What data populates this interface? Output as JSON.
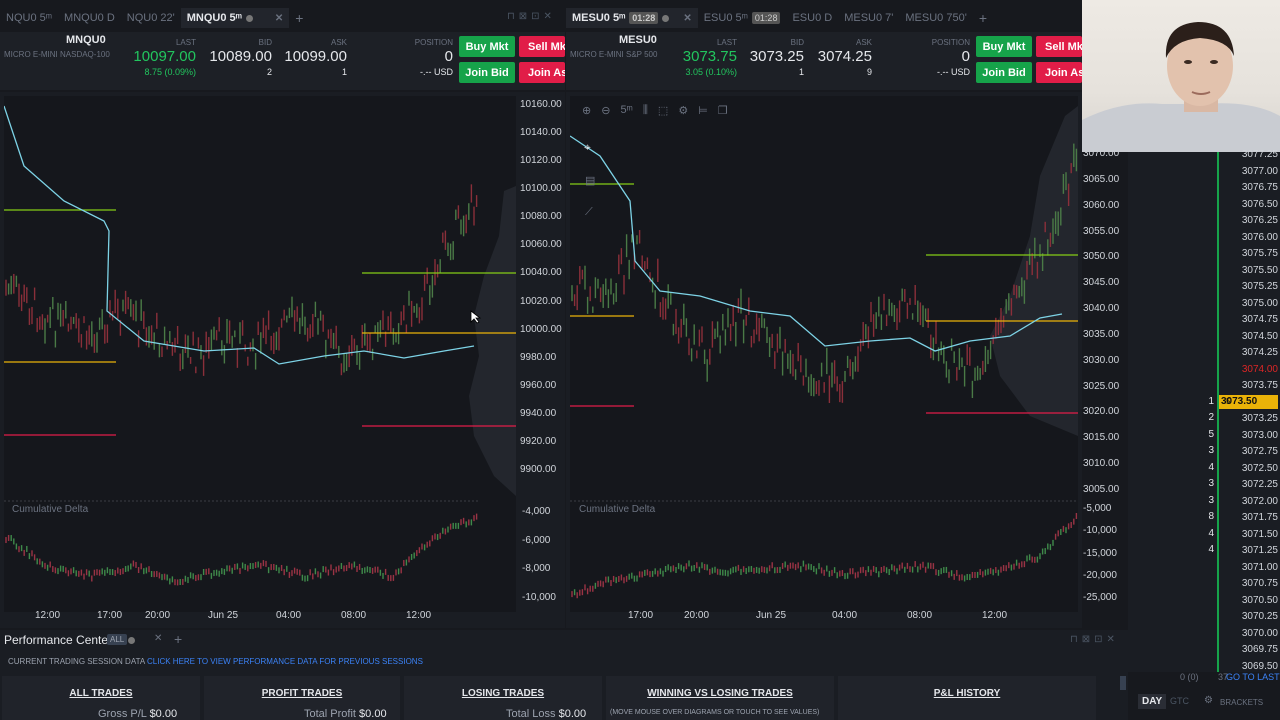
{
  "left_tabs": [
    {
      "label": "NQU0 5ᵐ",
      "active": false
    },
    {
      "label": "MNQU0 D",
      "active": false
    },
    {
      "label": "NQU0 22'",
      "active": false
    },
    {
      "label": "MNQU0 5ᵐ",
      "active": true
    }
  ],
  "right_tabs": [
    {
      "label": "MESU0 5ᵐ",
      "active": true,
      "badge": "01:28"
    },
    {
      "label": "ESU0 5ᵐ",
      "active": false,
      "badge": "01:28"
    },
    {
      "label": "ESU0 D",
      "active": false
    },
    {
      "label": "MESU0 7'",
      "active": false
    },
    {
      "label": "MESU0 750'",
      "active": false
    }
  ],
  "left_quote": {
    "symbol": "MNQU0",
    "description": "MICRO E-MINI NASDAQ-100",
    "last_label": "LAST",
    "last": "10097.00",
    "change": "8.75 (0.09%)",
    "bid_label": "BID",
    "bid": "10089.00",
    "bid_size": "2",
    "ask_label": "ASK",
    "ask": "10099.00",
    "ask_size": "1",
    "position_label": "POSITION",
    "position": "0",
    "pnl": "-.-- USD",
    "buy_mkt": "Buy Mkt",
    "sell_mkt": "Sell Mkt",
    "join_bid": "Join Bid",
    "join_ask": "Join Ask"
  },
  "right_quote": {
    "symbol": "MESU0",
    "description": "MICRO E-MINI S&P 500",
    "last_label": "LAST",
    "last": "3073.75",
    "change": "3.05 (0.10%)",
    "bid_label": "BID",
    "bid": "3073.25",
    "bid_size": "1",
    "ask_label": "ASK",
    "ask": "3074.25",
    "ask_size": "9",
    "position_label": "POSITION",
    "position": "0",
    "pnl": "-.-- USD",
    "buy_mkt": "Buy Mkt",
    "sell_mkt": "Sell Mkt",
    "join_bid": "Join Bid",
    "join_ask": "Join Ask"
  },
  "left_chart": {
    "price_ticks": [
      "10160.00",
      "10140.00",
      "10120.00",
      "10100.00",
      "10080.00",
      "10060.00",
      "10040.00",
      "10020.00",
      "10000.00",
      "9980.00",
      "9960.00",
      "9940.00",
      "9920.00",
      "9900.00"
    ],
    "delta_ticks": [
      "-4,000",
      "-6,000",
      "-8,000",
      "-10,000"
    ],
    "time_ticks": [
      "12:00",
      "17:00",
      "20:00",
      "Jun 25",
      "04:00",
      "08:00",
      "12:00"
    ],
    "indicator": "Cumulative Delta"
  },
  "right_chart": {
    "price_ticks": [
      "3070.00",
      "3065.00",
      "3060.00",
      "3055.00",
      "3050.00",
      "3045.00",
      "3040.00",
      "3035.00",
      "3030.00",
      "3025.00",
      "3020.00",
      "3015.00",
      "3010.00",
      "3005.00"
    ],
    "delta_ticks": [
      "-5,000",
      "-10,000",
      "-15,000",
      "-20,000",
      "-25,000"
    ],
    "time_ticks": [
      "17:00",
      "20:00",
      "Jun 25",
      "04:00",
      "08:00",
      "12:00"
    ],
    "indicator": "Cumulative Delta",
    "timeframe": "5ᵐ"
  },
  "dom": {
    "rows": [
      {
        "price": "3077.25"
      },
      {
        "price": "3077.00"
      },
      {
        "price": "3076.75"
      },
      {
        "price": "3076.50"
      },
      {
        "price": "3076.25"
      },
      {
        "price": "3076.00"
      },
      {
        "price": "3075.75"
      },
      {
        "price": "3075.50"
      },
      {
        "price": "3075.25"
      },
      {
        "price": "3075.00"
      },
      {
        "price": "3074.75"
      },
      {
        "price": "3074.50"
      },
      {
        "price": "3074.25"
      },
      {
        "price": "3074.00",
        "red": true
      },
      {
        "price": "3073.75"
      },
      {
        "price": "3073.50",
        "highlight": true,
        "bid": "1",
        "marker": "5"
      },
      {
        "price": "3073.25",
        "bid": "2"
      },
      {
        "price": "3073.00",
        "bid": "5"
      },
      {
        "price": "3072.75",
        "bid": "3"
      },
      {
        "price": "3072.50",
        "bid": "4"
      },
      {
        "price": "3072.25",
        "bid": "3"
      },
      {
        "price": "3072.00",
        "bid": "3"
      },
      {
        "price": "3071.75",
        "bid": "8"
      },
      {
        "price": "3071.50",
        "bid": "4"
      },
      {
        "price": "3071.25",
        "bid": "4"
      },
      {
        "price": "3071.00"
      },
      {
        "price": "3070.75"
      },
      {
        "price": "3070.50"
      },
      {
        "price": "3070.25"
      },
      {
        "price": "3070.00"
      },
      {
        "price": "3069.75"
      },
      {
        "price": "3069.50"
      }
    ],
    "footer_left": "0 (0)",
    "footer_mid": "37",
    "go_to_last": "GO TO LAST",
    "day": "DAY",
    "gtc": "GTC",
    "brackets": "BRACKETS"
  },
  "perf": {
    "title": "Performance Center",
    "all_badge": "ALL",
    "session_text": "CURRENT TRADING SESSION DATA",
    "session_link": "CLICK HERE TO VIEW PERFORMANCE DATA FOR PREVIOUS SESSIONS",
    "cards": [
      {
        "title": "ALL TRADES",
        "label": "Gross P/L",
        "value": "$0.00"
      },
      {
        "title": "PROFIT TRADES",
        "label": "Total Profit",
        "value": "$0.00"
      },
      {
        "title": "LOSING TRADES",
        "label": "Total Loss",
        "value": "$0.00"
      },
      {
        "title": "WINNING VS LOSING TRADES",
        "label": "(MOVE MOUSE OVER DIAGRAMS OR TOUCH TO SEE VALUES)",
        "value": ""
      },
      {
        "title": "P&L HISTORY",
        "label": "",
        "value": ""
      }
    ]
  },
  "colors": {
    "green": "#16a34a",
    "red": "#e11d48",
    "yellow": "#eab308",
    "vwap": "#7dd3e6"
  }
}
